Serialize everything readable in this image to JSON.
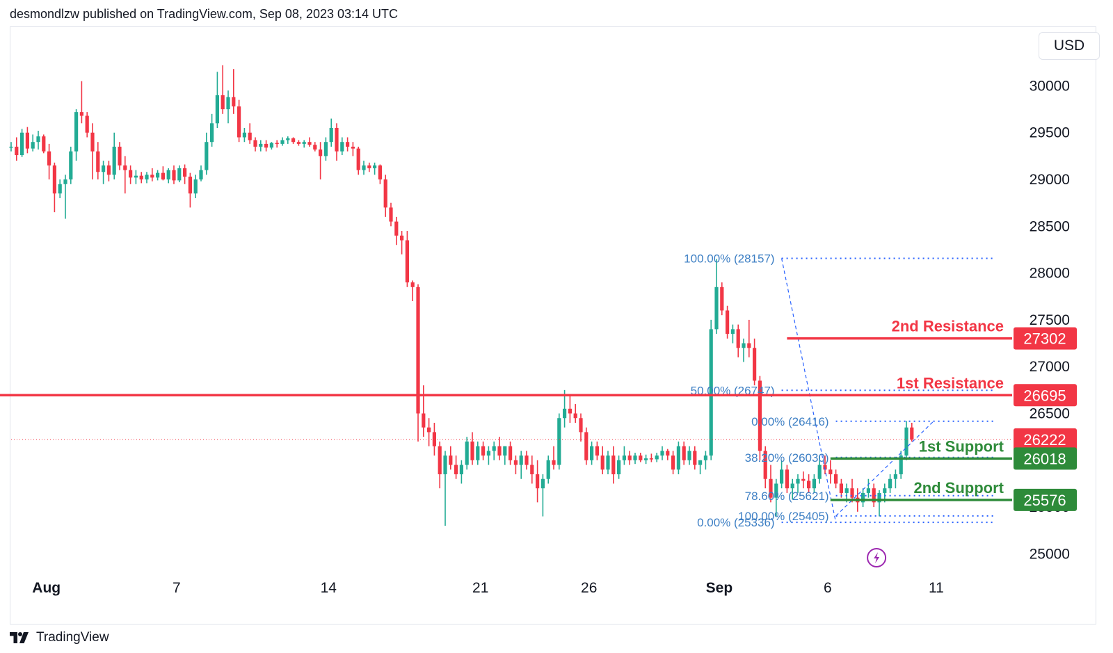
{
  "header": {
    "published": "desmondlzw published on TradingView.com, Sep 08, 2023 03:14 UTC"
  },
  "currency": "USD",
  "footer": {
    "brand": "TradingView",
    "logo_icon": "tradingview-logo-icon"
  },
  "colors": {
    "up": "#22ab94",
    "down": "#f23645",
    "resistance": "#f23645",
    "support": "#2e8b3a",
    "fib": "#2962ff",
    "fib_text": "#3d7fc4",
    "last": "#f23645"
  },
  "chart_data": {
    "type": "candlestick",
    "title": "",
    "ylim": [
      24780,
      30620
    ],
    "y_ticks": [
      25000,
      25500,
      26000,
      26500,
      27000,
      27500,
      28000,
      28500,
      29000,
      29500,
      30000
    ],
    "x_ticks": [
      {
        "label": "Aug",
        "bar": 6.5,
        "bold": true
      },
      {
        "label": "7",
        "bar": 30.5,
        "bold": false
      },
      {
        "label": "14",
        "bar": 58.5,
        "bold": false
      },
      {
        "label": "21",
        "bar": 86.5,
        "bold": false
      },
      {
        "label": "26",
        "bar": 106.5,
        "bold": false
      },
      {
        "label": "Sep",
        "bar": 130.5,
        "bold": true
      },
      {
        "label": "6",
        "bar": 150.5,
        "bold": false
      },
      {
        "label": "11",
        "bar": 170.5,
        "bold": false
      }
    ],
    "candles": [
      [
        29340,
        29400,
        29300,
        29350
      ],
      [
        29350,
        29450,
        29200,
        29260
      ],
      [
        29260,
        29540,
        29240,
        29500
      ],
      [
        29500,
        29560,
        29280,
        29330
      ],
      [
        29330,
        29480,
        29300,
        29400
      ],
      [
        29400,
        29520,
        29320,
        29460
      ],
      [
        29460,
        29480,
        29280,
        29300
      ],
      [
        29300,
        29380,
        29000,
        29150
      ],
      [
        29150,
        29180,
        28650,
        28850
      ],
      [
        28850,
        29000,
        28800,
        28950
      ],
      [
        28950,
        29050,
        28580,
        29000
      ],
      [
        29000,
        29350,
        28950,
        29300
      ],
      [
        29300,
        29750,
        29200,
        29720
      ],
      [
        29720,
        30050,
        29600,
        29680
      ],
      [
        29680,
        29720,
        29450,
        29500
      ],
      [
        29500,
        29600,
        29000,
        29300
      ],
      [
        29300,
        29400,
        29000,
        29080
      ],
      [
        29080,
        29200,
        28950,
        29150
      ],
      [
        29150,
        29200,
        28980,
        29050
      ],
      [
        29050,
        29500,
        29000,
        29350
      ],
      [
        29350,
        29400,
        29100,
        29150
      ],
      [
        29150,
        29250,
        28850,
        29100
      ],
      [
        29100,
        29150,
        28950,
        29020
      ],
      [
        29020,
        29100,
        28950,
        29040
      ],
      [
        29040,
        29080,
        28960,
        29000
      ],
      [
        29000,
        29080,
        28960,
        29050
      ],
      [
        29050,
        29120,
        28980,
        29020
      ],
      [
        29020,
        29100,
        28990,
        29070
      ],
      [
        29070,
        29140,
        28990,
        29000
      ],
      [
        29000,
        29120,
        28960,
        29100
      ],
      [
        29100,
        29150,
        28950,
        28990
      ],
      [
        28990,
        29150,
        28970,
        29120
      ],
      [
        29120,
        29160,
        28950,
        29030
      ],
      [
        29030,
        29070,
        28700,
        28850
      ],
      [
        28850,
        29050,
        28800,
        29000
      ],
      [
        29000,
        29150,
        28980,
        29100
      ],
      [
        29100,
        29500,
        29050,
        29400
      ],
      [
        29400,
        29700,
        29350,
        29600
      ],
      [
        29600,
        30150,
        29550,
        29900
      ],
      [
        29900,
        30220,
        29700,
        29750
      ],
      [
        29750,
        29950,
        29600,
        29880
      ],
      [
        29880,
        30180,
        29700,
        29780
      ],
      [
        29780,
        29850,
        29400,
        29450
      ],
      [
        29450,
        29550,
        29400,
        29500
      ],
      [
        29500,
        29600,
        29380,
        29420
      ],
      [
        29420,
        29450,
        29300,
        29350
      ],
      [
        29350,
        29420,
        29300,
        29380
      ],
      [
        29380,
        29420,
        29300,
        29340
      ],
      [
        29340,
        29400,
        29320,
        29390
      ],
      [
        29390,
        29420,
        29340,
        29380
      ],
      [
        29380,
        29450,
        29360,
        29420
      ],
      [
        29420,
        29460,
        29380,
        29440
      ],
      [
        29440,
        29450,
        29380,
        29400
      ],
      [
        29400,
        29420,
        29360,
        29380
      ],
      [
        29380,
        29420,
        29340,
        29400
      ],
      [
        29400,
        29450,
        29350,
        29370
      ],
      [
        29370,
        29400,
        29300,
        29320
      ],
      [
        29320,
        29400,
        29000,
        29250
      ],
      [
        29250,
        29450,
        29200,
        29400
      ],
      [
        29400,
        29650,
        29350,
        29550
      ],
      [
        29550,
        29600,
        29200,
        29300
      ],
      [
        29300,
        29450,
        29260,
        29400
      ],
      [
        29400,
        29450,
        29300,
        29350
      ],
      [
        29350,
        29400,
        29250,
        29330
      ],
      [
        29330,
        29350,
        29050,
        29100
      ],
      [
        29100,
        29200,
        29050,
        29150
      ],
      [
        29150,
        29180,
        29080,
        29120
      ],
      [
        29120,
        29180,
        29050,
        29150
      ],
      [
        29150,
        29160,
        28950,
        29000
      ],
      [
        29000,
        29050,
        28600,
        28700
      ],
      [
        28700,
        28750,
        28500,
        28550
      ],
      [
        28550,
        28600,
        28300,
        28400
      ],
      [
        28400,
        28450,
        28200,
        28350
      ],
      [
        28350,
        28450,
        27850,
        27900
      ],
      [
        27900,
        27920,
        27700,
        27850
      ],
      [
        27850,
        27880,
        26200,
        26500
      ],
      [
        26500,
        26800,
        26250,
        26350
      ],
      [
        26350,
        26450,
        26150,
        26300
      ],
      [
        26300,
        26400,
        26050,
        26150
      ],
      [
        26150,
        26200,
        25700,
        25850
      ],
      [
        25850,
        26100,
        25300,
        26050
      ],
      [
        26050,
        26150,
        25900,
        25950
      ],
      [
        25950,
        26050,
        25800,
        25850
      ],
      [
        25850,
        26000,
        25750,
        25950
      ],
      [
        25950,
        26250,
        25900,
        26200
      ],
      [
        26200,
        26300,
        25950,
        26000
      ],
      [
        26000,
        26200,
        25950,
        26150
      ],
      [
        26150,
        26200,
        26000,
        26050
      ],
      [
        26050,
        26150,
        25950,
        26100
      ],
      [
        26100,
        26200,
        26000,
        26150
      ],
      [
        26150,
        26250,
        26000,
        26050
      ],
      [
        26050,
        26150,
        25950,
        26150
      ],
      [
        26150,
        26200,
        25950,
        26000
      ],
      [
        26000,
        26050,
        25850,
        25950
      ],
      [
        25950,
        26100,
        25800,
        26050
      ],
      [
        26050,
        26100,
        25900,
        25950
      ],
      [
        25950,
        26050,
        25750,
        25850
      ],
      [
        25850,
        26000,
        25550,
        25700
      ],
      [
        25700,
        25850,
        25400,
        25800
      ],
      [
        25800,
        26050,
        25750,
        26000
      ],
      [
        26000,
        26150,
        25900,
        25950
      ],
      [
        25950,
        26500,
        25900,
        26450
      ],
      [
        26450,
        26750,
        26350,
        26550
      ],
      [
        26550,
        26700,
        26400,
        26500
      ],
      [
        26500,
        26600,
        26400,
        26450
      ],
      [
        26450,
        26500,
        26200,
        26300
      ],
      [
        26300,
        26350,
        25950,
        26000
      ],
      [
        26000,
        26200,
        25950,
        26150
      ],
      [
        26150,
        26200,
        26000,
        26050
      ],
      [
        26050,
        26150,
        25850,
        25900
      ],
      [
        25900,
        26100,
        25850,
        26050
      ],
      [
        26050,
        26150,
        25750,
        25850
      ],
      [
        25850,
        26050,
        25800,
        26000
      ],
      [
        26000,
        26150,
        25950,
        26050
      ],
      [
        26050,
        26100,
        25950,
        26000
      ],
      [
        26000,
        26080,
        25960,
        26050
      ],
      [
        26050,
        26080,
        25980,
        26000
      ],
      [
        26000,
        26060,
        25960,
        26020
      ],
      [
        26020,
        26070,
        25980,
        26010
      ],
      [
        26010,
        26080,
        25980,
        26050
      ],
      [
        26050,
        26150,
        26000,
        26100
      ],
      [
        26100,
        26120,
        26000,
        26050
      ],
      [
        26050,
        26100,
        25850,
        25900
      ],
      [
        25900,
        26200,
        25850,
        26150
      ],
      [
        26150,
        26200,
        25950,
        26000
      ],
      [
        26000,
        26150,
        25950,
        26100
      ],
      [
        26100,
        26150,
        25900,
        25950
      ],
      [
        25950,
        26000,
        25850,
        26000
      ],
      [
        26000,
        26100,
        25900,
        26050
      ],
      [
        26050,
        27500,
        26000,
        27400
      ],
      [
        27400,
        28150,
        27350,
        27850
      ],
      [
        27850,
        27900,
        27550,
        27600
      ],
      [
        27600,
        27650,
        27300,
        27350
      ],
      [
        27350,
        27450,
        27250,
        27400
      ],
      [
        27400,
        27450,
        27100,
        27200
      ],
      [
        27200,
        27300,
        27050,
        27250
      ],
      [
        27250,
        27500,
        27100,
        27200
      ],
      [
        27200,
        27300,
        26800,
        26850
      ],
      [
        26850,
        26900,
        26000,
        26100
      ],
      [
        26100,
        26150,
        25700,
        25800
      ],
      [
        25800,
        25950,
        25550,
        25600
      ],
      [
        25600,
        25800,
        25400,
        25750
      ],
      [
        25750,
        26000,
        25700,
        25900
      ],
      [
        25900,
        25950,
        25650,
        25700
      ],
      [
        25700,
        25800,
        25580,
        25750
      ],
      [
        25750,
        25850,
        25650,
        25800
      ],
      [
        25800,
        25880,
        25700,
        25780
      ],
      [
        25780,
        25850,
        25650,
        25700
      ],
      [
        25700,
        25850,
        25650,
        25800
      ],
      [
        25800,
        26050,
        25750,
        25950
      ],
      [
        25950,
        26050,
        25850,
        25900
      ],
      [
        25900,
        26000,
        25750,
        25850
      ],
      [
        25850,
        25900,
        25700,
        25750
      ],
      [
        25750,
        25800,
        25600,
        25650
      ],
      [
        25650,
        25750,
        25550,
        25700
      ],
      [
        25700,
        25800,
        25550,
        25600
      ],
      [
        25600,
        25700,
        25450,
        25550
      ],
      [
        25550,
        25700,
        25500,
        25650
      ],
      [
        25650,
        25800,
        25600,
        25700
      ],
      [
        25700,
        25750,
        25500,
        25550
      ],
      [
        25550,
        25680,
        25400,
        25650
      ],
      [
        25650,
        25750,
        25550,
        25700
      ],
      [
        25700,
        25850,
        25650,
        25800
      ],
      [
        25800,
        25900,
        25700,
        25850
      ],
      [
        25850,
        26100,
        25800,
        26050
      ],
      [
        26050,
        26420,
        26000,
        26350
      ],
      [
        26350,
        26400,
        26200,
        26222
      ]
    ],
    "last_price": 26222,
    "levels": [
      {
        "name": "2nd Resistance",
        "value": 27302,
        "kind": "resistance",
        "start_bar": 143
      },
      {
        "name": "1st Resistance",
        "value": 26695,
        "kind": "resistance",
        "start_bar": 0
      },
      {
        "name": "1st Support",
        "value": 26018,
        "kind": "support",
        "start_bar": 151
      },
      {
        "name": "2nd Support",
        "value": 25576,
        "kind": "support",
        "start_bar": 151
      }
    ],
    "fib_sets": [
      {
        "from_bar": 142,
        "to_bar": 151,
        "extend_to_bar": 181,
        "low_bar": 152,
        "levels": [
          {
            "label": "100.00% (28157)",
            "value": 28157
          },
          {
            "label": "50.00% (26747)",
            "value": 26747
          },
          {
            "label": "0.00% (25336)",
            "value": 25336
          }
        ]
      },
      {
        "from_bar": 152,
        "to_bar": 170,
        "extend_to_bar": 181,
        "levels": [
          {
            "label": "0.00% (26416)",
            "value": 26416
          },
          {
            "label": "38.20% (26030)",
            "value": 26030
          },
          {
            "label": "78.60% (25621)",
            "value": 25621
          },
          {
            "label": "100.00% (25405)",
            "value": 25405
          }
        ]
      }
    ],
    "price_labels": [
      {
        "text": "27302",
        "value": 27302,
        "color": "resistance"
      },
      {
        "text": "26695",
        "value": 26695,
        "color": "resistance"
      },
      {
        "text": "26222",
        "value": 26222,
        "color": "last"
      },
      {
        "text": "26018",
        "value": 26018,
        "color": "support"
      },
      {
        "text": "25576",
        "value": 25576,
        "color": "support"
      }
    ],
    "icons": [
      "lightning-event-icon"
    ]
  }
}
